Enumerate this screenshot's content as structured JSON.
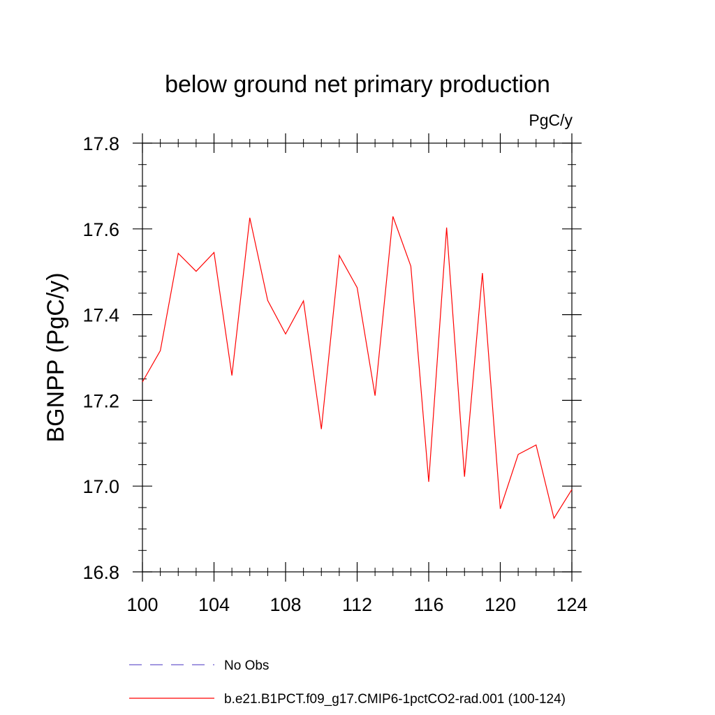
{
  "chart_data": {
    "type": "line",
    "title": "below ground net primary production",
    "units_label": "PgC/y",
    "ylabel": "BGNPP  (PgC/y)",
    "xlabel": "",
    "xlim": [
      100,
      124
    ],
    "ylim": [
      16.8,
      17.8
    ],
    "x_ticks": [
      "100",
      "104",
      "108",
      "112",
      "116",
      "120",
      "124"
    ],
    "y_ticks": [
      "16.8",
      "17.0",
      "17.2",
      "17.4",
      "17.6",
      "17.8"
    ],
    "x": [
      100,
      101,
      102,
      103,
      104,
      105,
      106,
      107,
      108,
      109,
      110,
      111,
      112,
      113,
      114,
      115,
      116,
      117,
      118,
      119,
      120,
      121,
      122,
      123,
      124
    ],
    "series": [
      {
        "name": "b.e21.B1PCT.f09_g17.CMIP6-1pctCO2-rad.001 (100-124)",
        "color": "#ff0000",
        "style": "solid",
        "values": [
          17.243,
          17.316,
          17.543,
          17.501,
          17.545,
          17.258,
          17.626,
          17.433,
          17.355,
          17.432,
          17.133,
          17.538,
          17.463,
          17.211,
          17.629,
          17.513,
          17.01,
          17.603,
          17.022,
          17.497,
          16.947,
          17.074,
          17.096,
          16.925,
          16.992
        ]
      }
    ],
    "legend": {
      "placement": "bottom",
      "entries": [
        {
          "label": "No Obs",
          "color": "#6a5acd",
          "style": "dashed"
        },
        {
          "label": "b.e21.B1PCT.f09_g17.CMIP6-1pctCO2-rad.001 (100-124)",
          "color": "#ff0000",
          "style": "solid"
        }
      ]
    }
  }
}
